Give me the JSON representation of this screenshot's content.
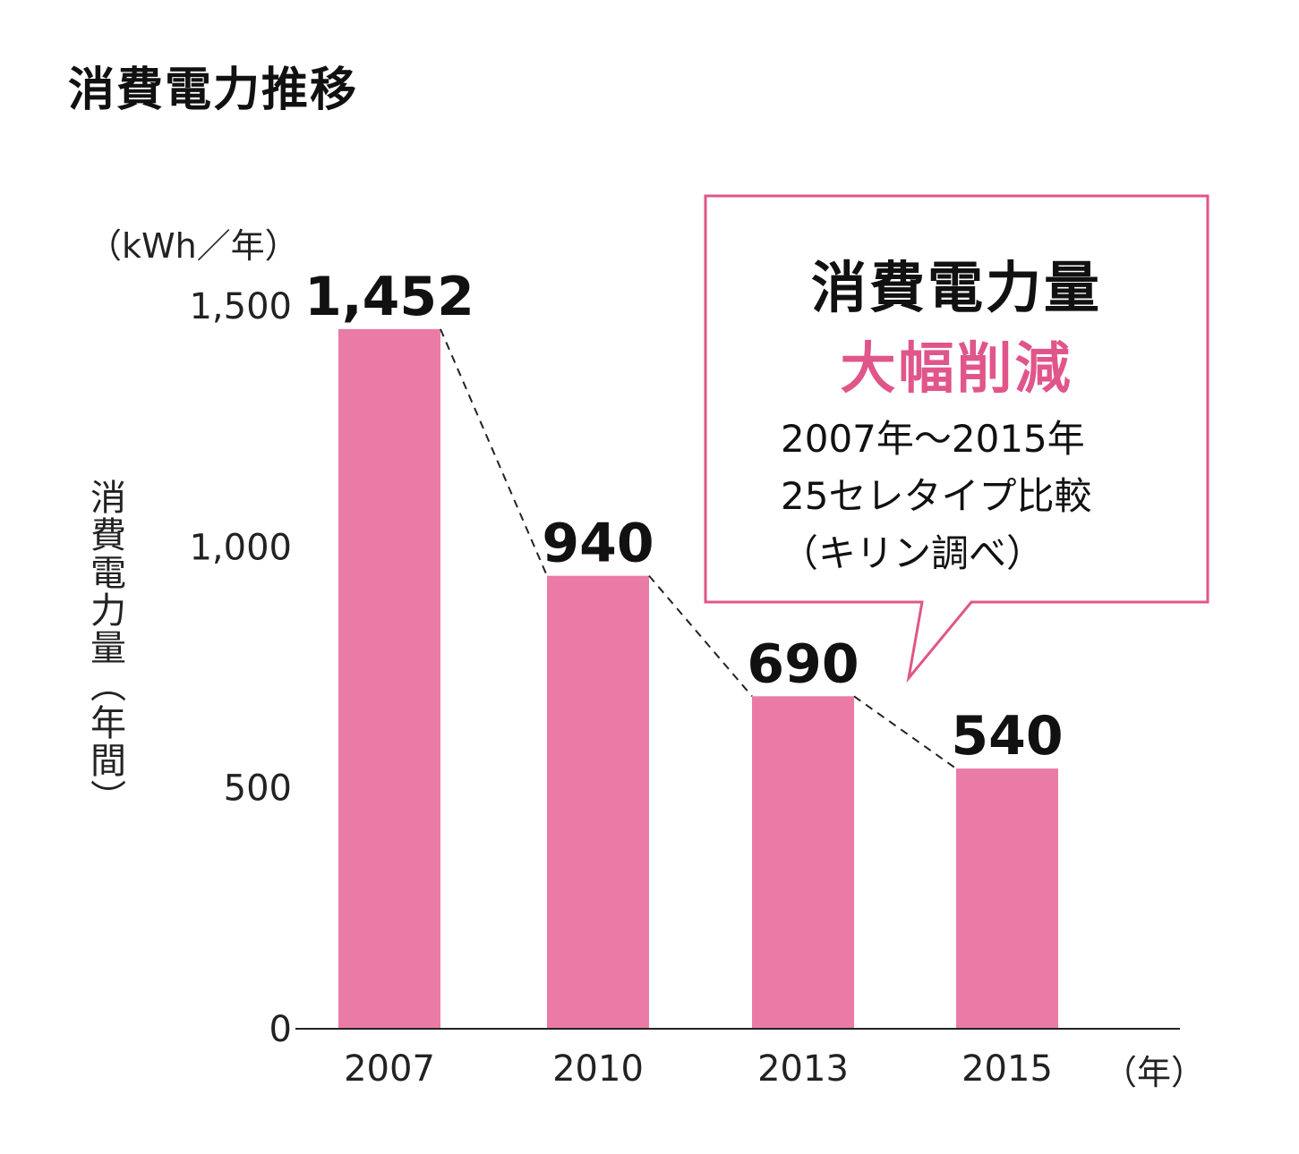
{
  "chart_data": {
    "type": "bar",
    "title": "消費電力推移",
    "ylabel": "消費電力量（年間）",
    "yunit": "（kWh／年）",
    "xunit": "（年）",
    "categories": [
      "2007",
      "2010",
      "2013",
      "2015"
    ],
    "values": [
      1452,
      940,
      690,
      540
    ],
    "data_labels": [
      "1,452",
      "940",
      "690",
      "540"
    ],
    "ylim": [
      0,
      1500
    ],
    "yticks": [
      0,
      500,
      1000,
      1500
    ],
    "ytick_labels": [
      "0",
      "500",
      "1,000",
      "1,500"
    ],
    "grid": false,
    "trend_line": "dashed",
    "bar_color": "#EA7BA6",
    "annotation": {
      "line1": "消費電力量",
      "line2": "大幅削減",
      "line3": "2007年～2015年",
      "line4": "25セレタイプ比較",
      "line5": "（キリン調べ）",
      "border_color": "#E0568A",
      "highlight_color": "#E0568A"
    }
  }
}
